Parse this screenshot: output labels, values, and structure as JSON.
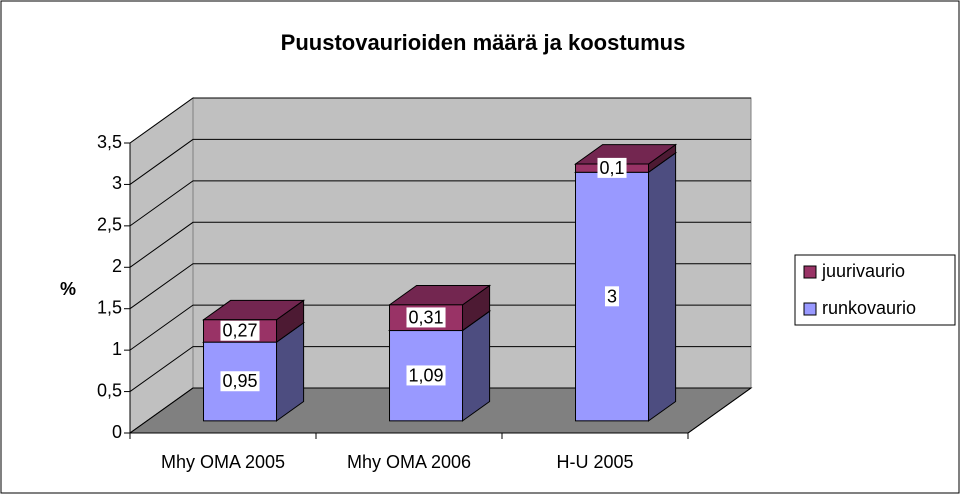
{
  "chart_data": {
    "type": "bar3d_stacked",
    "title": "Puustovaurioiden määrä ja koostumus",
    "y_label": "%",
    "categories": [
      "Mhy OMA 2005",
      "Mhy OMA 2006",
      "H-U 2005"
    ],
    "series": [
      {
        "name": "runkovaurio",
        "color": "#9999ff",
        "values": [
          0.95,
          1.09,
          3
        ],
        "value_labels": [
          "0,95",
          "1,09",
          "3"
        ]
      },
      {
        "name": "juurivaurio",
        "color": "#993366",
        "values": [
          0.27,
          0.31,
          0.1
        ],
        "value_labels": [
          "0,27",
          "0,31",
          "0,1"
        ]
      }
    ],
    "ylim": [
      0,
      3.5
    ],
    "yticks": [
      0,
      {
        "value": 0.5,
        "label": "0,5"
      },
      1,
      {
        "value": 1.5,
        "label": "1,5"
      },
      2,
      {
        "value": 2.5,
        "label": "2,5"
      },
      3,
      {
        "value": 3.5,
        "label": "3,5"
      }
    ],
    "grid": true,
    "legend": "right"
  }
}
